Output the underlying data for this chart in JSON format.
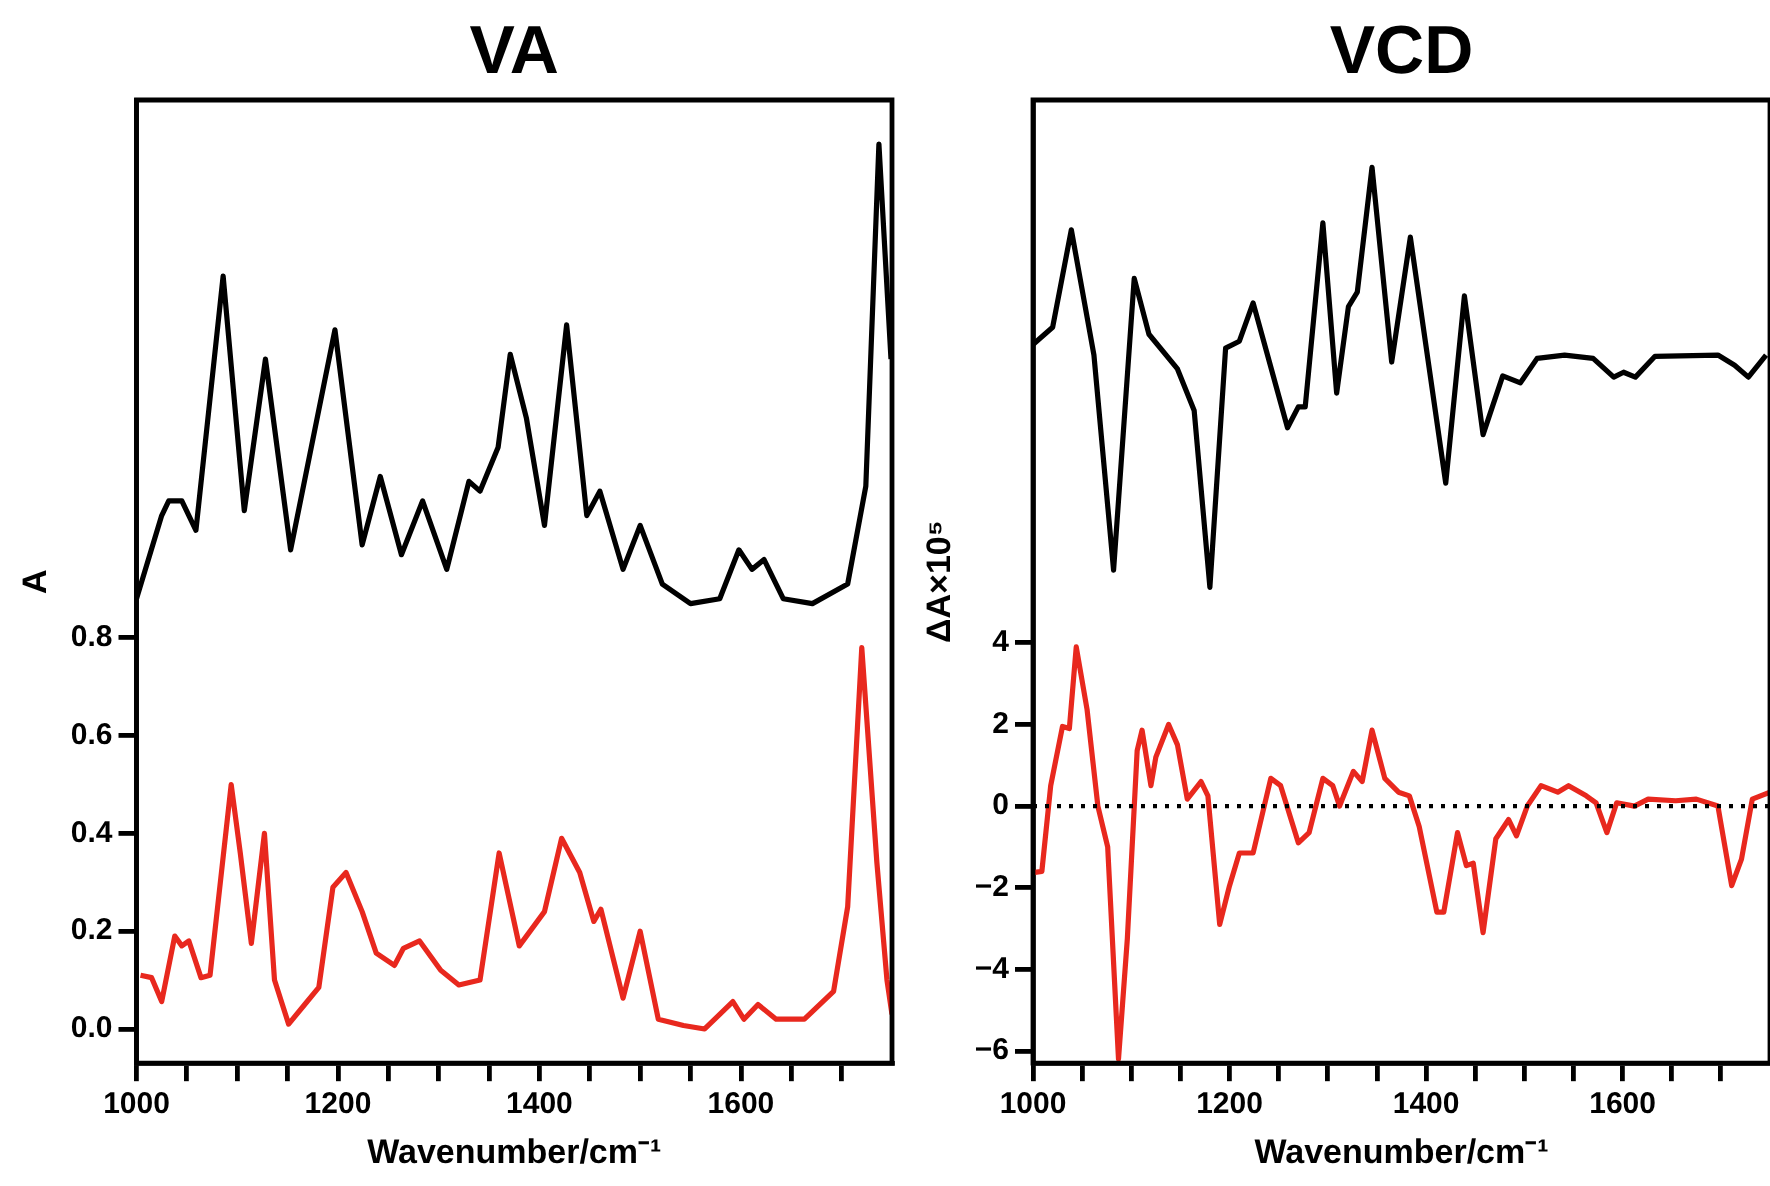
{
  "chart_data": [
    {
      "type": "line",
      "title": "VA",
      "xlabel": "Wavenumber/cm⁻¹",
      "ylabel": "A",
      "xlim": [
        1000,
        1750
      ],
      "ylim": [
        -0.07,
        1.9
      ],
      "xticks": [
        1000,
        {
          "value": 1050,
          "label": null
        },
        {
          "value": 1100,
          "label": null
        },
        {
          "value": 1150,
          "label": null
        },
        1200,
        {
          "value": 1250,
          "label": null
        },
        {
          "value": 1300,
          "label": null
        },
        {
          "value": 1350,
          "label": null
        },
        1400,
        {
          "value": 1450,
          "label": null
        },
        {
          "value": 1500,
          "label": null
        },
        {
          "value": 1550,
          "label": null
        },
        1600,
        {
          "value": 1650,
          "label": null
        },
        {
          "value": 1700,
          "label": null
        }
      ],
      "yticks": [
        {
          "value": 0,
          "label": "0.0"
        },
        0.2,
        0.4,
        0.6,
        0.8
      ],
      "series": [
        {
          "color": "#000000",
          "x": [
            1000,
            1025,
            1032,
            1045,
            1059,
            1086,
            1107,
            1128,
            1153,
            1197,
            1224,
            1242,
            1263,
            1284,
            1308,
            1330,
            1341,
            1359,
            1371,
            1387,
            1405,
            1427,
            1447,
            1460,
            1483,
            1500,
            1522,
            1550,
            1579,
            1598,
            1611,
            1623,
            1642,
            1671,
            1706,
            1724,
            1737,
            1749
          ],
          "values": [
            0.88,
            1.05,
            1.08,
            1.08,
            1.02,
            1.54,
            1.06,
            1.37,
            0.98,
            1.43,
            0.99,
            1.13,
            0.97,
            1.08,
            0.94,
            1.12,
            1.1,
            1.19,
            1.38,
            1.25,
            1.03,
            1.44,
            1.05,
            1.1,
            0.94,
            1.03,
            0.91,
            0.87,
            0.88,
            0.98,
            0.94,
            0.96,
            0.88,
            0.87,
            0.91,
            1.11,
            1.81,
            1.37
          ]
        },
        {
          "color": "#e8281e",
          "x": [
            1004,
            1015,
            1025,
            1038,
            1045,
            1052,
            1064,
            1073,
            1094,
            1103,
            1114,
            1127,
            1137,
            1151,
            1167,
            1181,
            1195,
            1208,
            1224,
            1238,
            1256,
            1265,
            1281,
            1302,
            1320,
            1341,
            1360,
            1380,
            1405,
            1422,
            1440,
            1454,
            1461,
            1483,
            1500,
            1518,
            1543,
            1564,
            1592,
            1603,
            1617,
            1635,
            1663,
            1692,
            1706,
            1720,
            1735,
            1745,
            1750
          ],
          "values": [
            0.11,
            0.105,
            0.056,
            0.19,
            0.17,
            0.18,
            0.105,
            0.11,
            0.5,
            0.36,
            0.175,
            0.4,
            0.1,
            0.01,
            0.05,
            0.085,
            0.29,
            0.32,
            0.24,
            0.155,
            0.13,
            0.165,
            0.18,
            0.12,
            0.09,
            0.1,
            0.36,
            0.17,
            0.24,
            0.39,
            0.32,
            0.22,
            0.245,
            0.063,
            0.2,
            0.02,
            0.007,
            0.0,
            0.056,
            0.02,
            0.05,
            0.02,
            0.02,
            0.077,
            0.25,
            0.78,
            0.34,
            0.1,
            0.03
          ]
        }
      ]
    },
    {
      "type": "line",
      "title": "VCD",
      "xlabel": "Wavenumber/cm⁻¹",
      "ylabel": "ΔA×10⁵",
      "xlim": [
        1000,
        1750
      ],
      "ylim": [
        -6.3,
        17.3
      ],
      "xticks": [
        1000,
        {
          "value": 1050,
          "label": null
        },
        {
          "value": 1100,
          "label": null
        },
        {
          "value": 1150,
          "label": null
        },
        1200,
        {
          "value": 1250,
          "label": null
        },
        {
          "value": 1300,
          "label": null
        },
        {
          "value": 1350,
          "label": null
        },
        1400,
        {
          "value": 1450,
          "label": null
        },
        {
          "value": 1500,
          "label": null
        },
        {
          "value": 1550,
          "label": null
        },
        1600,
        {
          "value": 1650,
          "label": null
        },
        {
          "value": 1700,
          "label": null
        }
      ],
      "yticks": [
        {
          "value": -6,
          "label": "−6"
        },
        {
          "value": -4,
          "label": "−4"
        },
        {
          "value": -2,
          "label": "−2"
        },
        0,
        2,
        4
      ],
      "ref_lines": [
        {
          "axis": "y",
          "value": 0,
          "line_style": "dotted",
          "color": "#000000"
        }
      ],
      "series": [
        {
          "color": "#000000",
          "x": [
            1000,
            1020,
            1039,
            1062,
            1082,
            1103,
            1118,
            1147,
            1164,
            1180,
            1196,
            1210,
            1224,
            1259,
            1270,
            1277,
            1295,
            1309,
            1321,
            1330,
            1345,
            1365,
            1384,
            1420,
            1439,
            1458,
            1478,
            1496,
            1513,
            1541,
            1570,
            1591,
            1601,
            1613,
            1633,
            1697,
            1714,
            1728,
            1746
          ],
          "values": [
            11.31,
            11.73,
            14.12,
            11.05,
            5.78,
            12.93,
            11.56,
            10.71,
            9.69,
            5.36,
            11.22,
            11.39,
            12.33,
            9.27,
            9.78,
            9.78,
            14.29,
            10.12,
            12.24,
            12.59,
            15.65,
            10.88,
            13.94,
            7.91,
            12.5,
            9.1,
            10.54,
            10.37,
            10.97,
            11.05,
            10.97,
            10.51,
            10.63,
            10.51,
            11.02,
            11.05,
            10.8,
            10.51,
            11.05
          ]
        },
        {
          "color": "#e8281e",
          "x": [
            1000,
            1009,
            1018,
            1030,
            1037,
            1044,
            1055,
            1066,
            1076,
            1087,
            1096,
            1106,
            1111,
            1120,
            1125,
            1138,
            1147,
            1157,
            1171,
            1178,
            1190,
            1200,
            1210,
            1224,
            1242,
            1252,
            1270,
            1281,
            1295,
            1305,
            1312,
            1326,
            1335,
            1345,
            1358,
            1372,
            1383,
            1393,
            1411,
            1418,
            1432,
            1441,
            1448,
            1458,
            1471,
            1484,
            1492,
            1503,
            1517,
            1534,
            1545,
            1563,
            1573,
            1584,
            1594,
            1612,
            1626,
            1654,
            1675,
            1697,
            1711,
            1721,
            1732,
            1750
          ],
          "values": [
            -1.63,
            -1.6,
            0.5,
            1.95,
            1.9,
            3.9,
            2.37,
            0,
            -1.0,
            -6.2,
            -3.25,
            1.36,
            1.86,
            0.5,
            1.2,
            2.0,
            1.5,
            0.17,
            0.6,
            0.25,
            -2.9,
            -1.95,
            -1.15,
            -1.15,
            0.68,
            0.5,
            -0.9,
            -0.65,
            0.68,
            0.5,
            0,
            0.85,
            0.6,
            1.86,
            0.68,
            0.34,
            0.25,
            -0.5,
            -2.6,
            -2.6,
            -0.65,
            -1.46,
            -1.4,
            -3.1,
            -0.8,
            -0.33,
            -0.73,
            0,
            0.5,
            0.34,
            0.5,
            0.25,
            0.08,
            -0.65,
            0.08,
            0,
            0.17,
            0.13,
            0.17,
            0,
            -1.95,
            -1.3,
            0.17,
            0.34
          ]
        }
      ]
    }
  ]
}
